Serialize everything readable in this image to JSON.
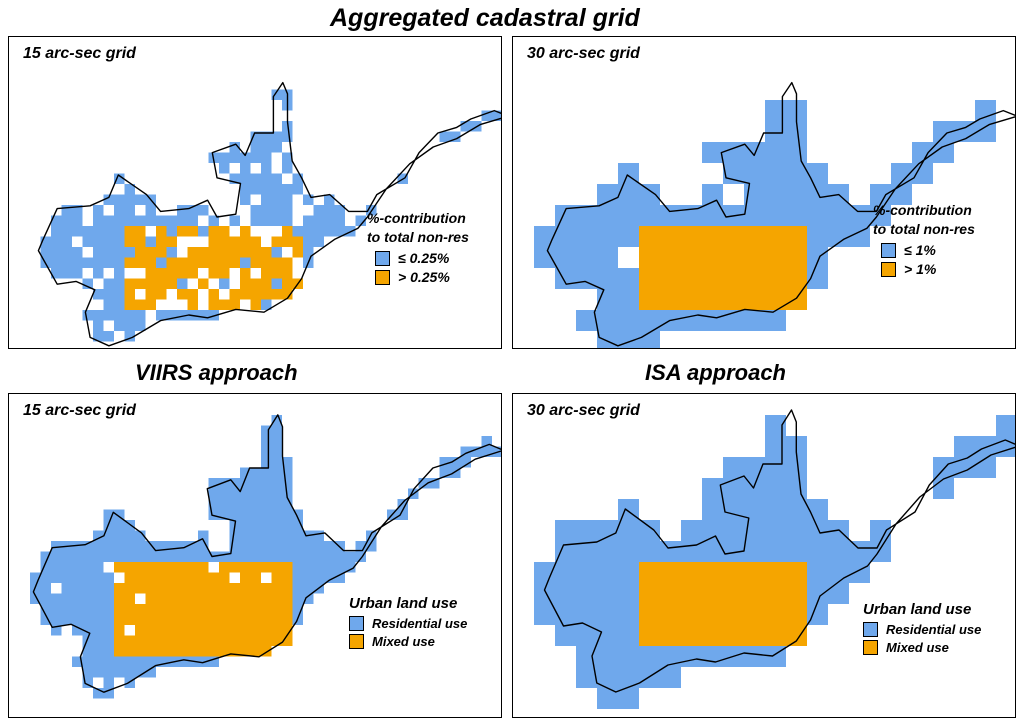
{
  "titles": {
    "top": "Aggregated cadastral grid",
    "bottom_left": "VIIRS approach",
    "bottom_right": "ISA approach"
  },
  "colors": {
    "residential_blue": "#6fa8ec",
    "mixed_orange": "#f5a500",
    "outline": "#000000"
  },
  "panels": [
    {
      "label": "15 arc-sec grid",
      "legend": {
        "title_lines": [
          "%-contribution",
          "to total non-res"
        ],
        "items": [
          {
            "label": "≤ 0.25%",
            "color": "#6fa8ec"
          },
          {
            "label": "> 0.25%",
            "color": "#f5a500"
          }
        ]
      }
    },
    {
      "label": "30 arc-sec grid",
      "legend": {
        "title_lines": [
          "%-contribution",
          "to total non-res"
        ],
        "items": [
          {
            "label": "≤ 1%",
            "color": "#6fa8ec"
          },
          {
            "label": "> 1%",
            "color": "#f5a500"
          }
        ]
      }
    },
    {
      "label": "15 arc-sec grid",
      "legend": {
        "title_lines": [
          "Urban land use"
        ],
        "items": [
          {
            "label": "Residential use",
            "color": "#6fa8ec"
          },
          {
            "label": "Mixed use",
            "color": "#f5a500"
          }
        ]
      }
    },
    {
      "label": "30 arc-sec grid",
      "legend": {
        "title_lines": [
          "Urban land use"
        ],
        "items": [
          {
            "label": "Residential use",
            "color": "#6fa8ec"
          },
          {
            "label": "Mixed use",
            "color": "#f5a500"
          }
        ]
      }
    }
  ]
}
